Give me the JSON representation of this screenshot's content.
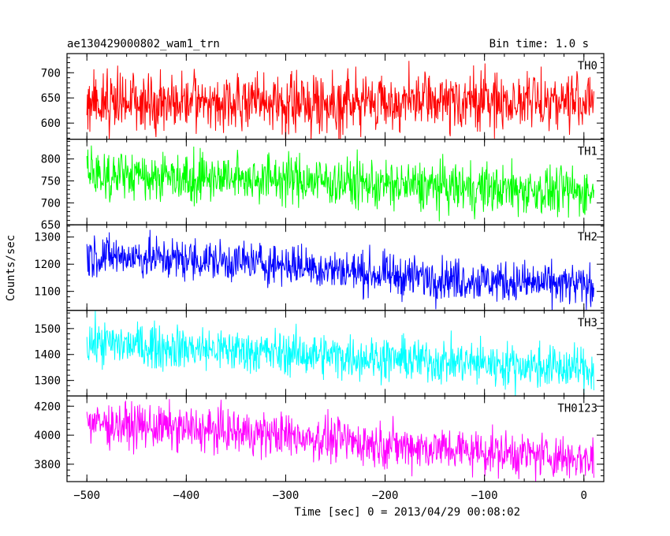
{
  "header": {
    "left_title": "ae130429000802_wam1_trn",
    "right_title": "Bin time: 1.0 s"
  },
  "chart_data": {
    "type": "line",
    "title": "ae130429000802_wam1_trn",
    "subtitle": "Bin time: 1.0 s",
    "xlabel": "Time [sec] 0 = 2013/04/29 00:08:02",
    "ylabel": "Counts/sec",
    "xlim": [
      -520,
      20
    ],
    "x_range": [
      -500,
      10
    ],
    "xticks": [
      -500,
      -400,
      -300,
      -200,
      -100,
      0
    ],
    "xtick_labels": [
      "−500",
      "−400",
      "−300",
      "−200",
      "−100",
      "0"
    ],
    "grid": false,
    "panels": [
      {
        "name": "TH0",
        "color": "#ff0000",
        "ylim": [
          568,
          738
        ],
        "yticks": [
          600,
          650,
          700
        ],
        "mean_trend": [
          [
            -500,
            640
          ],
          [
            -300,
            640
          ],
          [
            0,
            645
          ]
        ],
        "noise_sd": 28
      },
      {
        "name": "TH1",
        "color": "#00ff00",
        "ylim": [
          650,
          845
        ],
        "yticks": [
          650,
          700,
          750,
          800
        ],
        "mean_trend": [
          [
            -500,
            765
          ],
          [
            -300,
            755
          ],
          [
            -200,
            740
          ],
          [
            0,
            725
          ]
        ],
        "noise_sd": 28
      },
      {
        "name": "TH2",
        "color": "#0000ff",
        "ylim": [
          1030,
          1345
        ],
        "yticks": [
          1100,
          1200,
          1300
        ],
        "mean_trend": [
          [
            -500,
            1235
          ],
          [
            -300,
            1200
          ],
          [
            -200,
            1160
          ],
          [
            0,
            1120
          ]
        ],
        "noise_sd": 38
      },
      {
        "name": "TH3",
        "color": "#00ffff",
        "ylim": [
          1240,
          1570
        ],
        "yticks": [
          1300,
          1400,
          1500
        ],
        "mean_trend": [
          [
            -500,
            1445
          ],
          [
            -300,
            1405
          ],
          [
            -200,
            1385
          ],
          [
            0,
            1345
          ]
        ],
        "noise_sd": 42
      },
      {
        "name": "TH0123",
        "color": "#ff00ff",
        "ylim": [
          3680,
          4270
        ],
        "yticks": [
          3800,
          4000,
          4200
        ],
        "mean_trend": [
          [
            -500,
            4085
          ],
          [
            -300,
            4000
          ],
          [
            -200,
            3935
          ],
          [
            0,
            3840
          ]
        ],
        "noise_sd": 75
      }
    ]
  }
}
